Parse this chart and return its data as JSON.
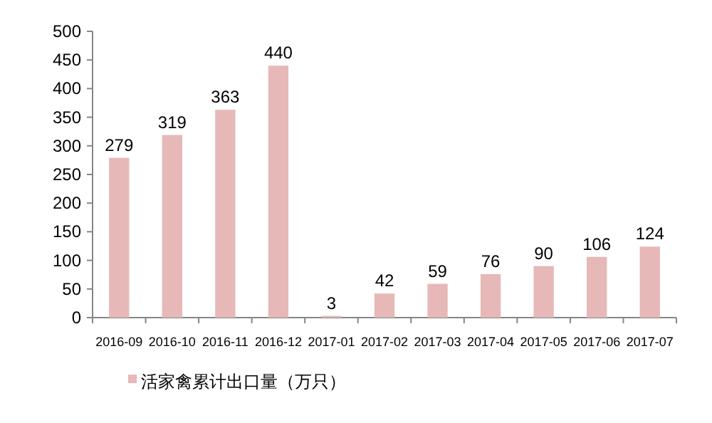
{
  "chart_data": {
    "type": "bar",
    "categories": [
      "2016-09",
      "2016-10",
      "2016-11",
      "2016-12",
      "2017-01",
      "2017-02",
      "2017-03",
      "2017-04",
      "2017-05",
      "2017-06",
      "2017-07"
    ],
    "series": [
      {
        "name": "活家禽累计出口量（万只）",
        "color": "#e6b8b7",
        "values": [
          279,
          319,
          363,
          440,
          3,
          42,
          59,
          76,
          90,
          106,
          124
        ]
      }
    ],
    "ylim": [
      0,
      500
    ],
    "yticks": [
      0,
      50,
      100,
      150,
      200,
      250,
      300,
      350,
      400,
      450,
      500
    ],
    "data_labels": true,
    "grid": false,
    "legend": "bottom left"
  }
}
